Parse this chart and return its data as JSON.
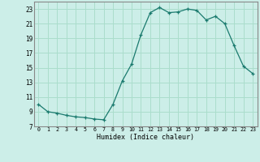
{
  "x": [
    0,
    1,
    2,
    3,
    4,
    5,
    6,
    7,
    8,
    9,
    10,
    11,
    12,
    13,
    14,
    15,
    16,
    17,
    18,
    19,
    20,
    21,
    22,
    23
  ],
  "y": [
    10.0,
    9.0,
    8.8,
    8.5,
    8.3,
    8.2,
    8.0,
    7.9,
    10.0,
    13.2,
    15.5,
    19.5,
    22.5,
    23.2,
    22.5,
    22.6,
    23.0,
    22.8,
    21.5,
    22.0,
    21.0,
    18.0,
    15.2,
    14.2
  ],
  "xlim": [
    -0.5,
    23.5
  ],
  "ylim": [
    7,
    24
  ],
  "yticks": [
    7,
    9,
    11,
    13,
    15,
    17,
    19,
    21,
    23
  ],
  "xticks": [
    0,
    1,
    2,
    3,
    4,
    5,
    6,
    7,
    8,
    9,
    10,
    11,
    12,
    13,
    14,
    15,
    16,
    17,
    18,
    19,
    20,
    21,
    22,
    23
  ],
  "xlabel": "Humidex (Indice chaleur)",
  "line_color": "#1a7a6e",
  "marker": "+",
  "bg_color": "#cceee8",
  "grid_color": "#aaddcc",
  "spine_color": "#888888"
}
